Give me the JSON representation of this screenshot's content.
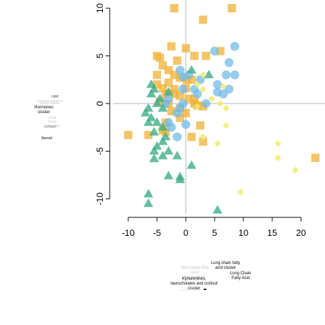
{
  "chart_data": {
    "type": "scatter",
    "title": "",
    "xlabel": "",
    "ylabel": "",
    "xlim": [
      -10.5,
      23
    ],
    "ylim": [
      -11,
      10.5
    ],
    "xticks": [
      -10,
      -5,
      0,
      5,
      10,
      15,
      20
    ],
    "yticks": [
      -10,
      -5,
      0,
      5,
      10
    ],
    "reference_lines": {
      "x": 0,
      "y": 0
    },
    "grid": false,
    "colors": {
      "squares": "#efb135",
      "circles": "#6fb8e6",
      "triangles": "#3aac84",
      "diamonds": "#f0ec6e"
    },
    "series": [
      {
        "marker": "square",
        "color": "#efb135",
        "points": [
          [
            -2,
            10
          ],
          [
            8,
            10
          ],
          [
            3,
            8.8
          ],
          [
            -2.5,
            6
          ],
          [
            0,
            5.8
          ],
          [
            6,
            5.5
          ],
          [
            -5,
            5
          ],
          [
            -4.5,
            4.8
          ],
          [
            3.5,
            5
          ],
          [
            1.5,
            5
          ],
          [
            -1.5,
            4.5
          ],
          [
            -4,
            4
          ],
          [
            -3,
            3.5
          ],
          [
            -5,
            3
          ],
          [
            -2,
            3
          ],
          [
            -1,
            2.7
          ],
          [
            0.2,
            2.5
          ],
          [
            1,
            2.5
          ],
          [
            -3,
            2.2
          ],
          [
            -5,
            2
          ],
          [
            -4,
            1.6
          ],
          [
            -2,
            1.5
          ],
          [
            0,
            1.6
          ],
          [
            -3.5,
            1
          ],
          [
            -2,
            1
          ],
          [
            -1,
            0.8
          ],
          [
            0.5,
            0.5
          ],
          [
            1.5,
            0.5
          ],
          [
            -4.5,
            0.2
          ],
          [
            -3,
            0
          ],
          [
            1.5,
            0
          ],
          [
            2,
            -0.2
          ],
          [
            3,
            -0.3
          ],
          [
            -1,
            -0.5
          ],
          [
            -2.5,
            -0.8
          ],
          [
            0,
            -1
          ],
          [
            -1,
            -1.5
          ],
          [
            -3.5,
            -2
          ],
          [
            -4,
            -2.8
          ],
          [
            -3.5,
            -3
          ],
          [
            2.5,
            -2.3
          ],
          [
            3,
            -4
          ],
          [
            1,
            -3.5
          ],
          [
            -6.5,
            -3.3
          ],
          [
            -10,
            -3.3
          ],
          [
            22.5,
            -5.7
          ]
        ]
      },
      {
        "marker": "circle",
        "color": "#6fb8e6",
        "points": [
          [
            8.5,
            6
          ],
          [
            5,
            5.5
          ],
          [
            7.5,
            4.3
          ],
          [
            -1,
            3.5
          ],
          [
            -0.5,
            2.8
          ],
          [
            0.5,
            3
          ],
          [
            7,
            3
          ],
          [
            8.5,
            3
          ],
          [
            2.5,
            2.5
          ],
          [
            5.5,
            2
          ],
          [
            7.5,
            1.5
          ],
          [
            5.5,
            1.2
          ],
          [
            6.5,
            1
          ],
          [
            -0.5,
            1.5
          ],
          [
            2,
            1
          ],
          [
            -3,
            0.5
          ],
          [
            -3.5,
            0
          ],
          [
            -0.5,
            0
          ],
          [
            -1,
            -0.5
          ],
          [
            -1.5,
            -1
          ],
          [
            -3,
            -2
          ],
          [
            -2.5,
            -2.5
          ],
          [
            -1.5,
            -3.5
          ],
          [
            1.5,
            1.5
          ],
          [
            3.5,
            0
          ],
          [
            0,
            -2.2
          ]
        ]
      },
      {
        "marker": "triangle",
        "color": "#3aac84",
        "points": [
          [
            1,
            3.5
          ],
          [
            4,
            3
          ],
          [
            -6,
            2
          ],
          [
            -5.5,
            1.5
          ],
          [
            -3,
            1.2
          ],
          [
            -6,
            1
          ],
          [
            -4.5,
            0.5
          ],
          [
            -5,
            0
          ],
          [
            -4,
            -0.5
          ],
          [
            -6.5,
            -0.5
          ],
          [
            -7,
            -1
          ],
          [
            -6,
            -1.5
          ],
          [
            -6.5,
            -2
          ],
          [
            -5,
            -2
          ],
          [
            -4,
            -2.5
          ],
          [
            -5.5,
            -3
          ],
          [
            -3.5,
            -3.5
          ],
          [
            -4,
            -4
          ],
          [
            -5,
            -4.5
          ],
          [
            -5.5,
            -5
          ],
          [
            -3,
            -5
          ],
          [
            -4,
            -5.5
          ],
          [
            -5.5,
            -5.8
          ],
          [
            -1.5,
            -5.5
          ],
          [
            1,
            -6.5
          ],
          [
            -3,
            -7.6
          ],
          [
            -1,
            -7.7
          ],
          [
            -1,
            -8
          ],
          [
            -6.5,
            -9.5
          ],
          [
            -6.5,
            -10.5
          ],
          [
            5.5,
            -11.2
          ]
        ]
      },
      {
        "marker": "diamond",
        "color": "#f0ec6e",
        "points": [
          [
            3,
            3
          ],
          [
            2,
            2
          ],
          [
            6.5,
            1.8
          ],
          [
            3,
            1.5
          ],
          [
            4.5,
            0.5
          ],
          [
            6,
            0
          ],
          [
            7,
            -0.5
          ],
          [
            2,
            -0.3
          ],
          [
            7,
            -2.3
          ],
          [
            3,
            -3.5
          ],
          [
            5.5,
            -4.2
          ],
          [
            16,
            -4.2
          ],
          [
            16,
            -5.7
          ],
          [
            19,
            -7
          ],
          [
            9.5,
            -9.3
          ]
        ]
      }
    ],
    "annotations": [
      {
        "text": "Lipid",
        "color": "#444444"
      },
      {
        "text": "Lipid-derived molecules and lipoprotein metabolism",
        "color": "#9a9a9a"
      },
      {
        "text": "Hormones cluster",
        "color": "#000000"
      },
      {
        "text": "Long Chain Fatty Acid",
        "color": "#c4c4c4"
      },
      {
        "text": "Lysolipid",
        "color": "#666666"
      },
      {
        "text": "Steroid",
        "color": "#000000"
      },
      {
        "text": "Secondary Bile Acid Metabolism",
        "color": "#c4c4c4"
      },
      {
        "text": "Long chain fatty acid cluster",
        "color": "#000000"
      },
      {
        "text": "Long Chain Fatty Acid",
        "color": "#000000"
      },
      {
        "text": "Kynurenines, taurocholates and cortisol cluster",
        "color": "#000000"
      },
      {
        "text": "Tryptophan and corticosteroid metabolites",
        "color": "#d8d8d8"
      }
    ]
  }
}
